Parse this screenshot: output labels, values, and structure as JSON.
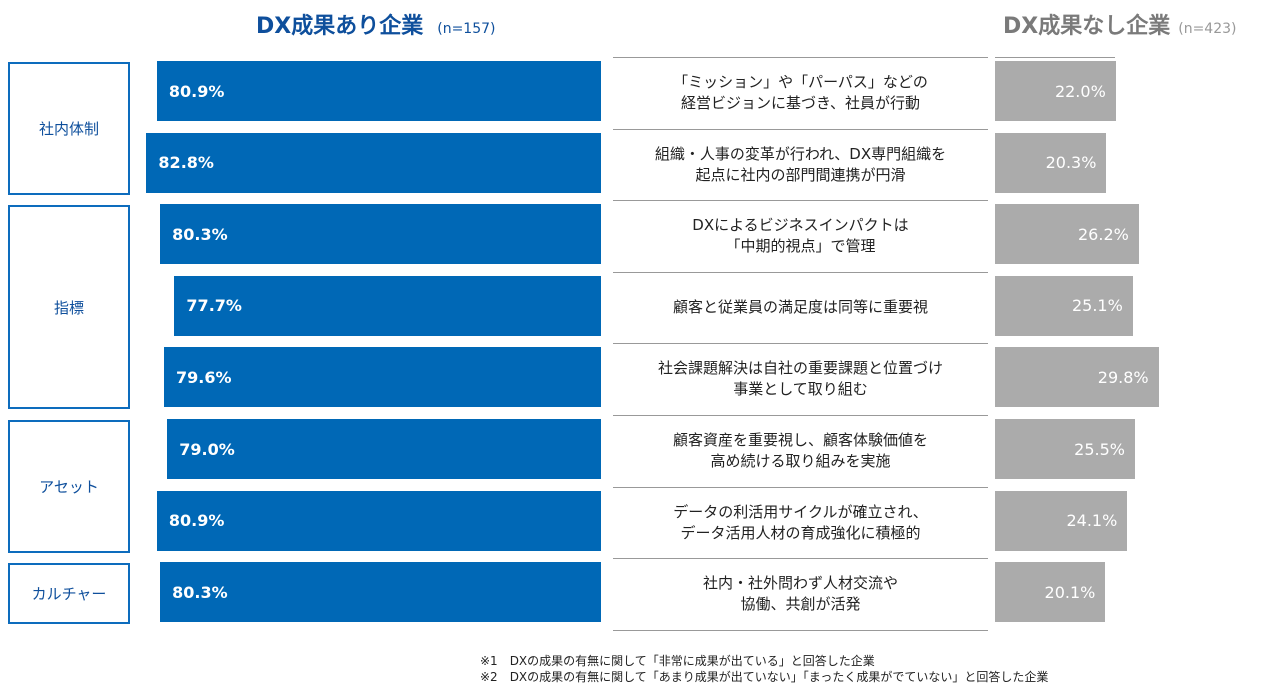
{
  "chart_data": {
    "type": "bar",
    "series": [
      {
        "name": "DX成果あり企業",
        "n_label": "(n=157)",
        "color": "#0068b6",
        "values": [
          80.9,
          82.8,
          80.3,
          77.7,
          79.6,
          79.0,
          80.9,
          80.3
        ],
        "labels": [
          "80.9%",
          "82.8%",
          "80.3%",
          "77.7%",
          "79.6%",
          "79.0%",
          "80.9%",
          "80.3%"
        ]
      },
      {
        "name": "DX成果なし企業",
        "n_label": "(n=423)",
        "color": "#ababab",
        "values": [
          22.0,
          20.3,
          26.2,
          25.1,
          29.8,
          25.5,
          24.1,
          20.1
        ],
        "labels": [
          "22.0%",
          "20.3%",
          "26.2%",
          "25.1%",
          "29.8%",
          "25.5%",
          "24.1%",
          "20.1%"
        ]
      }
    ],
    "categories": [
      "「ミッション」や「パーパス」などの\n経営ビジョンに基づき、社員が行動",
      "組織・人事の変革が行われ、DX専門組織を\n起点に社内の部門間連携が円滑",
      "DXによるビジネスインパクトは\n「中期的視点」で管理",
      "顧客と従業員の満足度は同等に重要視",
      "社会課題解決は自社の重要課題と位置づけ\n事業として取り組む",
      "顧客資産を重要視し、顧客体験価値を\n高め続ける取り組みを実施",
      "データの利活用サイクルが確立され、\nデータ活用人材の育成強化に積極的",
      "社内・社外問わず人材交流や\n協働、共創が活発"
    ],
    "groups": [
      {
        "label": "社内体制",
        "rows": [
          0,
          1
        ]
      },
      {
        "label": "指標",
        "rows": [
          2,
          3,
          4
        ]
      },
      {
        "label": "アセット",
        "rows": [
          5,
          6
        ]
      },
      {
        "label": "カルチャー",
        "rows": [
          7
        ]
      }
    ]
  },
  "footnotes": [
    "※1　DXの成果の有無に関して「非常に成果が出ている」と回答した企業",
    "※2　DXの成果の有無に関して「あまり成果が出ていない」「まったく成果がでていない」と回答した企業"
  ]
}
